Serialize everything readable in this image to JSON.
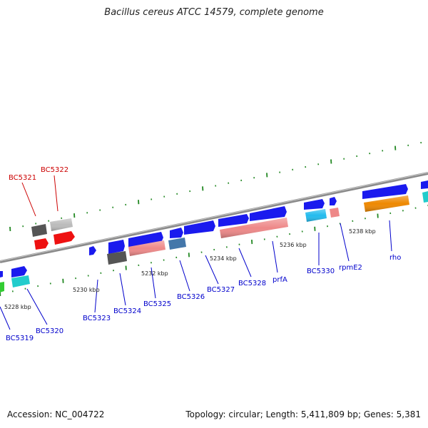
{
  "title": "Bacillus cereus ATCC 14579, complete genome",
  "footer": {
    "accession": "Accession: NC_004722",
    "summary": "Topology: circular; Length: 5,411,809 bp; Genes: 5,381"
  },
  "scale_labels": [
    "5228 kbp",
    "5230 kbp",
    "5232 kbp",
    "5234 kbp",
    "5236 kbp",
    "5238 kbp"
  ],
  "genes": [
    {
      "name": "BC5319",
      "color": "#0000cc"
    },
    {
      "name": "BC5320",
      "color": "#0000cc"
    },
    {
      "name": "BC5321",
      "color": "#cc0000"
    },
    {
      "name": "BC5322",
      "color": "#cc0000"
    },
    {
      "name": "BC5323",
      "color": "#0000cc"
    },
    {
      "name": "BC5324",
      "color": "#0000cc"
    },
    {
      "name": "BC5325",
      "color": "#0000cc"
    },
    {
      "name": "BC5326",
      "color": "#0000cc"
    },
    {
      "name": "BC5327",
      "color": "#0000cc"
    },
    {
      "name": "BC5328",
      "color": "#0000cc"
    },
    {
      "name": "prfA",
      "color": "#0000cc"
    },
    {
      "name": "BC5330",
      "color": "#0000cc"
    },
    {
      "name": "rpmE2",
      "color": "#0000cc"
    },
    {
      "name": "rho",
      "color": "#0000cc"
    }
  ],
  "colors": {
    "backbone": "#8a8a8a",
    "forward_gene": "#1a1aee",
    "reverse_gene": "#1a1aee",
    "rna_red": "#ee1111",
    "grey_feature": "#bbbbbb",
    "dark_feature": "#555555",
    "pink_feature": "#ee8888",
    "cyan_feature": "#22cccc",
    "lightblue_feature": "#22bbee",
    "steel_feature": "#4477aa",
    "orange_feature": "#ee8800",
    "green_feature": "#33cc33",
    "tick": "#228822"
  }
}
